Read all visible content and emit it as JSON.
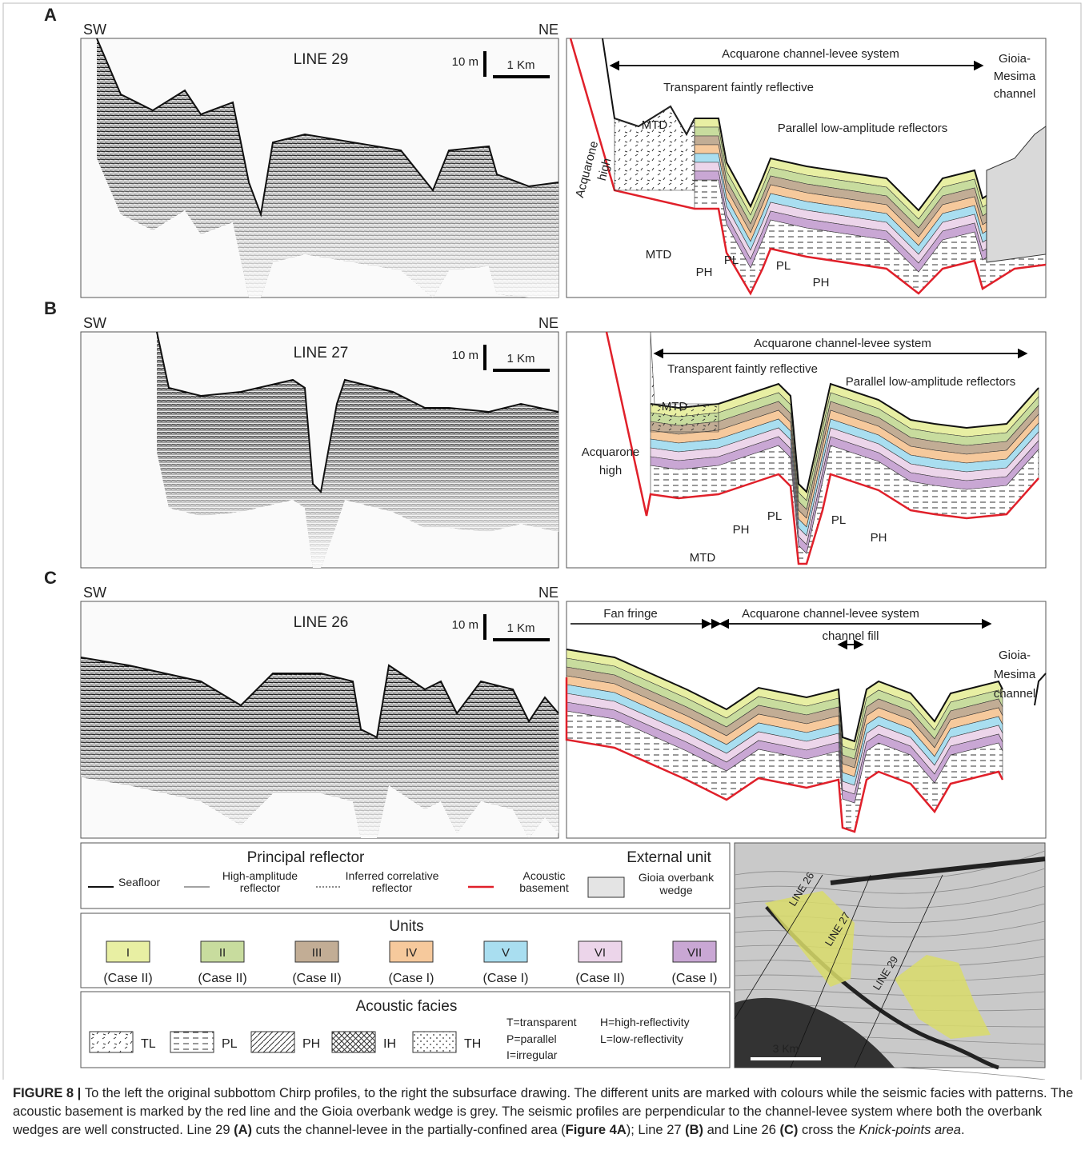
{
  "panels": [
    {
      "label": "A",
      "left_dir": "SW",
      "right_dir": "NE",
      "line": "LINE 29",
      "scale_v": "10 m",
      "scale_h": "1 Km",
      "annotations": [
        "Acquarone channel-levee system",
        "Gioia-",
        "Mesima",
        "channel",
        "Transparent faintly reflective",
        "Parallel low-amplitude reflectors",
        "MTD",
        "Acquarone",
        "high",
        "MTD",
        "PH",
        "PL",
        "PL",
        "PH"
      ]
    },
    {
      "label": "B",
      "left_dir": "SW",
      "right_dir": "NE",
      "line": "LINE 27",
      "scale_v": "10 m",
      "scale_h": "1 Km",
      "annotations": [
        "Acquarone channel-levee system",
        "Transparent faintly reflective",
        "Parallel low-amplitude reflectors",
        "MTD",
        "Acquarone",
        "high",
        "MTD",
        "PH",
        "PL",
        "PL",
        "PH"
      ]
    },
    {
      "label": "C",
      "left_dir": "SW",
      "right_dir": "NE",
      "line": "LINE 26",
      "scale_v": "10 m",
      "scale_h": "1 Km",
      "annotations": [
        "Fan fringe",
        "Acquarone channel-levee system",
        "channel fill",
        "Gioia-",
        "Mesima",
        "channel"
      ]
    }
  ],
  "legend": {
    "reflector_title": "Principal reflector",
    "external_title": "External unit",
    "reflectors": [
      [
        "Seafloor"
      ],
      [
        "High-amplitude",
        "reflector"
      ],
      [
        "Inferred correlative",
        "reflector"
      ],
      [
        "Acoustic",
        "basement"
      ]
    ],
    "external": [
      "Gioia overbank",
      "wedge"
    ],
    "units_title": "Units",
    "units": [
      {
        "label": "I",
        "case": "(Case II)",
        "color": "#e8efa3"
      },
      {
        "label": "II",
        "case": "(Case II)",
        "color": "#c8dc9e"
      },
      {
        "label": "III",
        "case": "(Case II)",
        "color": "#c2ad95"
      },
      {
        "label": "IV",
        "case": "(Case I)",
        "color": "#f6c99c"
      },
      {
        "label": "V",
        "case": "(Case I)",
        "color": "#a9def0"
      },
      {
        "label": "VI",
        "case": "(Case II)",
        "color": "#ecd5ea"
      },
      {
        "label": "VII",
        "case": "(Case I)",
        "color": "#c9a7d4"
      }
    ],
    "facies_title": "Acoustic facies",
    "facies": [
      "TL",
      "PL",
      "PH",
      "IH",
      "TH"
    ],
    "facies_notes": [
      "T=transparent",
      "P=parallel",
      "I=irregular",
      "H=high-reflectivity",
      "L=low-reflectivity"
    ]
  },
  "map": {
    "lines": [
      "LINE 26",
      "LINE 27",
      "LINE 29"
    ],
    "scale": "3 Km"
  },
  "caption": [
    "FIGURE 8 | ",
    "To the left the original subbottom Chirp profiles, to the right the subsurface drawing. The different units are marked with colours while the seismic facies with patterns. The acoustic basement is marked by the red line and the Gioia overbank wedge is grey. The seismic profiles are perpendicular to the channel-levee system where both the overbank wedges are well constructed. Line 29 ",
    "(A)",
    " cuts the channel-levee in the partially-confined area (",
    "Figure 4A",
    "); Line 27 ",
    "(B)",
    " and Line 26 ",
    "(C)",
    " cross the ",
    "Knick-points area",
    "."
  ]
}
